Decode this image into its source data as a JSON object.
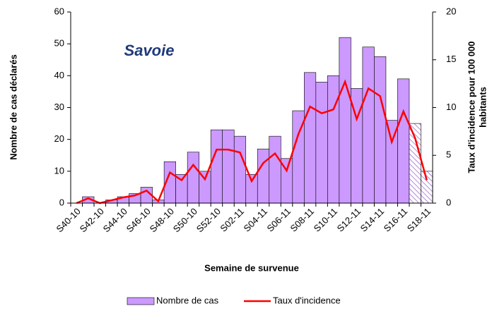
{
  "chart_data": {
    "type": "bar_line",
    "title": "Savoie",
    "x_label": "Semaine de survenue",
    "y_label": "Nombre de cas déclarés",
    "y2_label": [
      "Taux d'incidence pour 100 000",
      "habitants"
    ],
    "categories": [
      "S40-10",
      null,
      "S42-10",
      null,
      "S44-10",
      null,
      "S46-10",
      null,
      "S48-10",
      null,
      "S50-10",
      null,
      "S52-10",
      null,
      "S02-11",
      null,
      "S04-11",
      null,
      "S06-11",
      null,
      "S08-11",
      null,
      "S10-11",
      null,
      "S12-11",
      null,
      "S14-11",
      null,
      "S16-11",
      null,
      "S18-11"
    ],
    "series": [
      {
        "name": "Nombre de cas",
        "type": "bar",
        "color": "#cc99ff",
        "values": [
          0,
          2,
          0,
          1,
          2,
          3,
          5,
          1,
          13,
          9,
          16,
          10,
          23,
          23,
          21,
          9,
          17,
          21,
          14,
          29,
          41,
          38,
          40,
          52,
          36,
          49,
          46,
          26,
          39,
          25,
          10
        ],
        "hatched_last": 2
      },
      {
        "name": "Taux d'incidence",
        "type": "line",
        "axis": "y2",
        "color": "#ff0000",
        "values": [
          0,
          0.5,
          0,
          0.3,
          0.6,
          0.8,
          1.3,
          0.2,
          3.2,
          2.4,
          4,
          2.5,
          5.6,
          5.6,
          5.3,
          2.3,
          4.2,
          5.2,
          3.4,
          7.2,
          10.1,
          9.4,
          9.8,
          12.7,
          8.8,
          12,
          11.2,
          6.4,
          9.6,
          6.8,
          2.4
        ]
      }
    ],
    "ylim": [
      0,
      60
    ],
    "yticks": [
      0,
      10,
      20,
      30,
      40,
      50,
      60
    ],
    "y2lim": [
      0,
      20
    ],
    "y2ticks": [
      0,
      5,
      10,
      15,
      20
    ]
  }
}
